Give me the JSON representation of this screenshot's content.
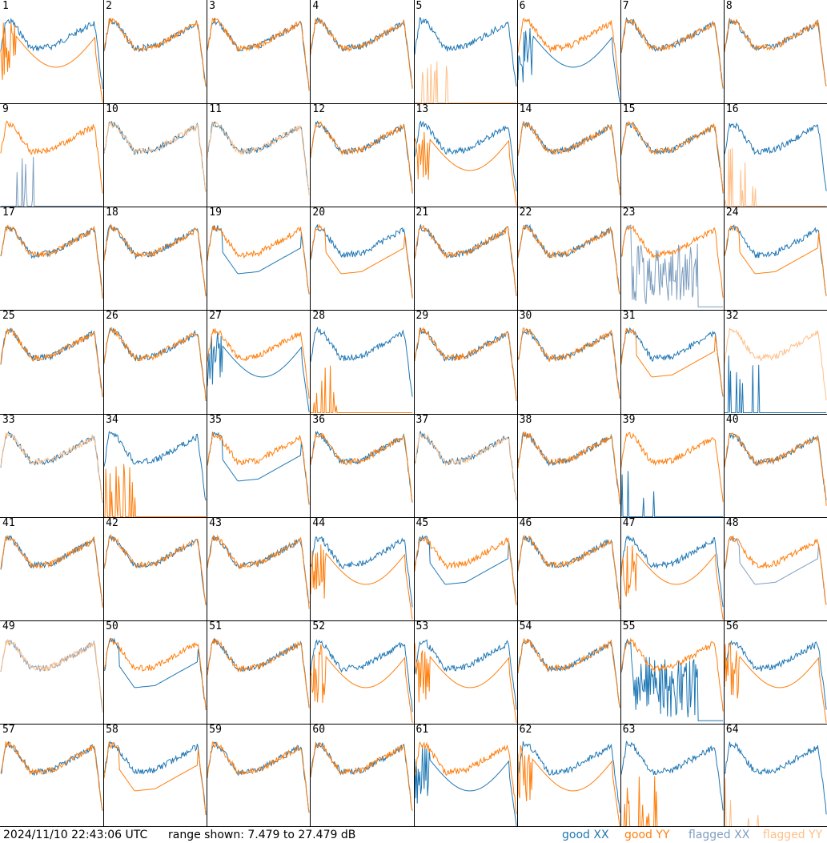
{
  "footer": {
    "timestamp": "2024/11/10 22:43:06 UTC",
    "range": "range shown: 7.479 to 27.479 dB"
  },
  "legend": {
    "good_xx": "good XX",
    "good_yy": "good YY",
    "flagged_xx": "flagged XX",
    "flagged_yy": "flagged YY"
  },
  "colors": {
    "good_xx": "#1f77b4",
    "good_yy": "#ff7f0e",
    "flagged_xx": "#7f9fbf",
    "flagged_yy": "#ffbf87",
    "grid": "#000000",
    "background": "#ffffff"
  },
  "chart_data": {
    "type": "line",
    "grid_rows": 8,
    "grid_cols": 8,
    "y_range_db": [
      7.479,
      27.479
    ],
    "panels": [
      {
        "id": "1",
        "xx": "good",
        "yy": "good",
        "shape": "orange-spiky-dip"
      },
      {
        "id": "2",
        "xx": "good",
        "yy": "good",
        "shape": "normal"
      },
      {
        "id": "3",
        "xx": "good",
        "yy": "good",
        "shape": "normal"
      },
      {
        "id": "4",
        "xx": "good",
        "yy": "good",
        "shape": "normal"
      },
      {
        "id": "5",
        "xx": "good",
        "yy": "flagged",
        "shape": "yy-flat"
      },
      {
        "id": "6",
        "xx": "good",
        "yy": "good",
        "shape": "blue-dip"
      },
      {
        "id": "7",
        "xx": "good",
        "yy": "good",
        "shape": "normal"
      },
      {
        "id": "8",
        "xx": "good",
        "yy": "good",
        "shape": "normal"
      },
      {
        "id": "9",
        "xx": "flagged",
        "yy": "good",
        "shape": "xx-flat"
      },
      {
        "id": "10",
        "xx": "good",
        "yy": "flagged",
        "shape": "normal"
      },
      {
        "id": "11",
        "xx": "good",
        "yy": "flagged",
        "shape": "normal"
      },
      {
        "id": "12",
        "xx": "good",
        "yy": "good",
        "shape": "blue-spiky"
      },
      {
        "id": "13",
        "xx": "good",
        "yy": "good",
        "shape": "orange-dip"
      },
      {
        "id": "14",
        "xx": "good",
        "yy": "good",
        "shape": "normal"
      },
      {
        "id": "15",
        "xx": "good",
        "yy": "good",
        "shape": "normal"
      },
      {
        "id": "16",
        "xx": "good",
        "yy": "flagged",
        "shape": "yy-flat"
      },
      {
        "id": "17",
        "xx": "good",
        "yy": "good",
        "shape": "normal"
      },
      {
        "id": "18",
        "xx": "good",
        "yy": "good",
        "shape": "normal"
      },
      {
        "id": "19",
        "xx": "good",
        "yy": "good",
        "shape": "blue-low"
      },
      {
        "id": "20",
        "xx": "good",
        "yy": "good",
        "shape": "orange-low"
      },
      {
        "id": "21",
        "xx": "good",
        "yy": "good",
        "shape": "normal"
      },
      {
        "id": "22",
        "xx": "good",
        "yy": "good",
        "shape": "normal"
      },
      {
        "id": "23",
        "xx": "flagged",
        "yy": "good",
        "shape": "xx-noisy"
      },
      {
        "id": "24",
        "xx": "good",
        "yy": "good",
        "shape": "orange-low"
      },
      {
        "id": "25",
        "xx": "good",
        "yy": "good",
        "shape": "normal"
      },
      {
        "id": "26",
        "xx": "good",
        "yy": "good",
        "shape": "normal"
      },
      {
        "id": "27",
        "xx": "good",
        "yy": "good",
        "shape": "blue-dip"
      },
      {
        "id": "28",
        "xx": "good",
        "yy": "good",
        "shape": "yy-flat"
      },
      {
        "id": "29",
        "xx": "good",
        "yy": "good",
        "shape": "normal"
      },
      {
        "id": "30",
        "xx": "good",
        "yy": "good",
        "shape": "normal"
      },
      {
        "id": "31",
        "xx": "good",
        "yy": "good",
        "shape": "orange-low"
      },
      {
        "id": "32",
        "xx": "good",
        "yy": "flagged",
        "shape": "xx-flat"
      },
      {
        "id": "33",
        "xx": "good",
        "yy": "flagged",
        "shape": "normal"
      },
      {
        "id": "34",
        "xx": "good",
        "yy": "good",
        "shape": "yy-flat"
      },
      {
        "id": "35",
        "xx": "good",
        "yy": "good",
        "shape": "blue-low"
      },
      {
        "id": "36",
        "xx": "good",
        "yy": "good",
        "shape": "normal"
      },
      {
        "id": "37",
        "xx": "good",
        "yy": "flagged",
        "shape": "normal"
      },
      {
        "id": "38",
        "xx": "good",
        "yy": "good",
        "shape": "normal"
      },
      {
        "id": "39",
        "xx": "good",
        "yy": "good",
        "shape": "xx-flat"
      },
      {
        "id": "40",
        "xx": "good",
        "yy": "good",
        "shape": "normal"
      },
      {
        "id": "41",
        "xx": "good",
        "yy": "good",
        "shape": "normal"
      },
      {
        "id": "42",
        "xx": "good",
        "yy": "good",
        "shape": "normal"
      },
      {
        "id": "43",
        "xx": "good",
        "yy": "good",
        "shape": "normal"
      },
      {
        "id": "44",
        "xx": "good",
        "yy": "good",
        "shape": "orange-dip"
      },
      {
        "id": "45",
        "xx": "good",
        "yy": "good",
        "shape": "blue-low"
      },
      {
        "id": "46",
        "xx": "good",
        "yy": "good",
        "shape": "normal"
      },
      {
        "id": "47",
        "xx": "good",
        "yy": "good",
        "shape": "orange-dip"
      },
      {
        "id": "48",
        "xx": "flagged",
        "yy": "good",
        "shape": "blue-low"
      },
      {
        "id": "49",
        "xx": "flagged",
        "yy": "flagged",
        "shape": "normal"
      },
      {
        "id": "50",
        "xx": "good",
        "yy": "good",
        "shape": "blue-low"
      },
      {
        "id": "51",
        "xx": "good",
        "yy": "good",
        "shape": "normal"
      },
      {
        "id": "52",
        "xx": "good",
        "yy": "good",
        "shape": "orange-dip"
      },
      {
        "id": "53",
        "xx": "good",
        "yy": "good",
        "shape": "orange-dip"
      },
      {
        "id": "54",
        "xx": "good",
        "yy": "good",
        "shape": "normal"
      },
      {
        "id": "55",
        "xx": "good",
        "yy": "good",
        "shape": "xx-noisy"
      },
      {
        "id": "56",
        "xx": "good",
        "yy": "good",
        "shape": "orange-spiky-dip"
      },
      {
        "id": "57",
        "xx": "good",
        "yy": "good",
        "shape": "normal"
      },
      {
        "id": "58",
        "xx": "good",
        "yy": "good",
        "shape": "orange-low"
      },
      {
        "id": "59",
        "xx": "good",
        "yy": "good",
        "shape": "normal"
      },
      {
        "id": "60",
        "xx": "good",
        "yy": "good",
        "shape": "normal"
      },
      {
        "id": "61",
        "xx": "good",
        "yy": "good",
        "shape": "blue-dip"
      },
      {
        "id": "62",
        "xx": "good",
        "yy": "good",
        "shape": "orange-dip"
      },
      {
        "id": "63",
        "xx": "good",
        "yy": "good",
        "shape": "yy-flat"
      },
      {
        "id": "64",
        "xx": "good",
        "yy": "flagged",
        "shape": "yy-flat"
      }
    ]
  }
}
